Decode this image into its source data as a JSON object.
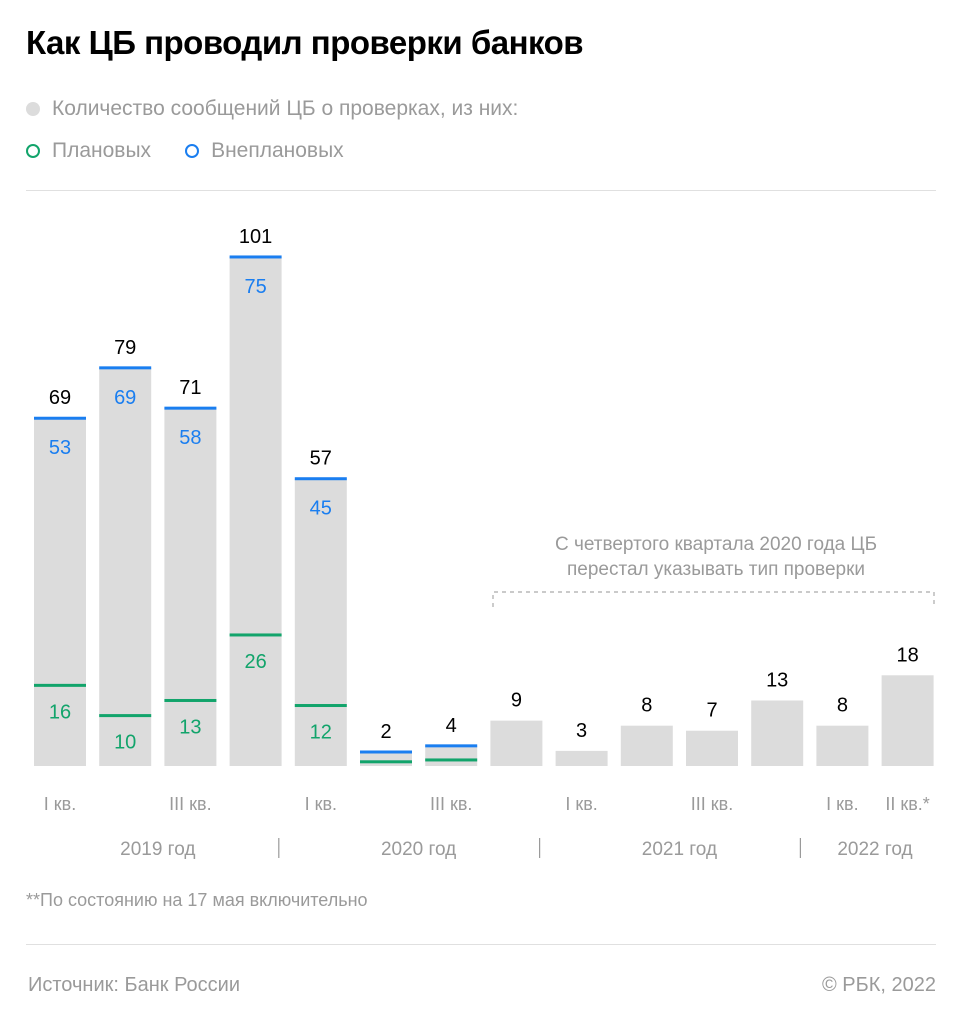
{
  "title": "Как ЦБ проводил проверки банков",
  "legend": {
    "total": "Количество сообщений ЦБ о проверках, из них:",
    "planned": "Плановых",
    "unplanned": "Внеплановых"
  },
  "colors": {
    "bar": "#dcdcdc",
    "planned": "#12a46b",
    "unplanned": "#1a7ef0",
    "label": "#000000",
    "axis_text": "#9a9a9a"
  },
  "annotation": {
    "line1": "С четвертого квартала 2020 года ЦБ",
    "line2": "перестал указывать тип проверки"
  },
  "footnote": "**По состоянию на 17 мая включительно",
  "source": "Источник: Банк России",
  "copyright": "©  РБК, 2022",
  "chart_data": {
    "type": "bar",
    "title": "Как ЦБ проводил проверки банков",
    "xlabel": "",
    "ylabel": "",
    "grid": false,
    "legend_position": "top-left",
    "categories": [
      "2019 I кв.",
      "2019 II кв.",
      "2019 III кв.",
      "2019 IV кв.",
      "2020 I кв.",
      "2020 II кв.",
      "2020 III кв.",
      "2020 IV кв.",
      "2021 I кв.",
      "2021 II кв.",
      "2021 III кв.",
      "2021 IV кв.",
      "2022 I кв.",
      "2022 II кв.*"
    ],
    "tick_labels": [
      "I кв.",
      "",
      "III кв.",
      "",
      "I кв.",
      "",
      "III кв.",
      "",
      "I кв.",
      "",
      "III кв.",
      "",
      "I кв.",
      "II кв.*"
    ],
    "year_labels": [
      {
        "label": "2019 год",
        "from": 0,
        "to": 3
      },
      {
        "label": "2020 год",
        "from": 4,
        "to": 7
      },
      {
        "label": "2021 год",
        "from": 8,
        "to": 11
      },
      {
        "label": "2022 год",
        "from": 12,
        "to": 13
      }
    ],
    "ylim": [
      0,
      101
    ],
    "series": [
      {
        "name": "Количество сообщений ЦБ о проверках",
        "values": [
          69,
          79,
          71,
          101,
          57,
          2,
          4,
          9,
          3,
          8,
          7,
          13,
          8,
          18
        ]
      },
      {
        "name": "Плановых",
        "values": [
          16,
          10,
          13,
          26,
          12,
          1,
          2,
          null,
          null,
          null,
          null,
          null,
          null,
          null
        ]
      },
      {
        "name": "Внеплановых",
        "values": [
          53,
          69,
          58,
          75,
          45,
          1,
          2,
          null,
          null,
          null,
          null,
          null,
          null,
          null
        ]
      }
    ],
    "planned_labels_shown": [
      true,
      true,
      true,
      true,
      true,
      false,
      false
    ],
    "unplanned_labels_shown": [
      true,
      true,
      true,
      true,
      true,
      false,
      false
    ]
  }
}
